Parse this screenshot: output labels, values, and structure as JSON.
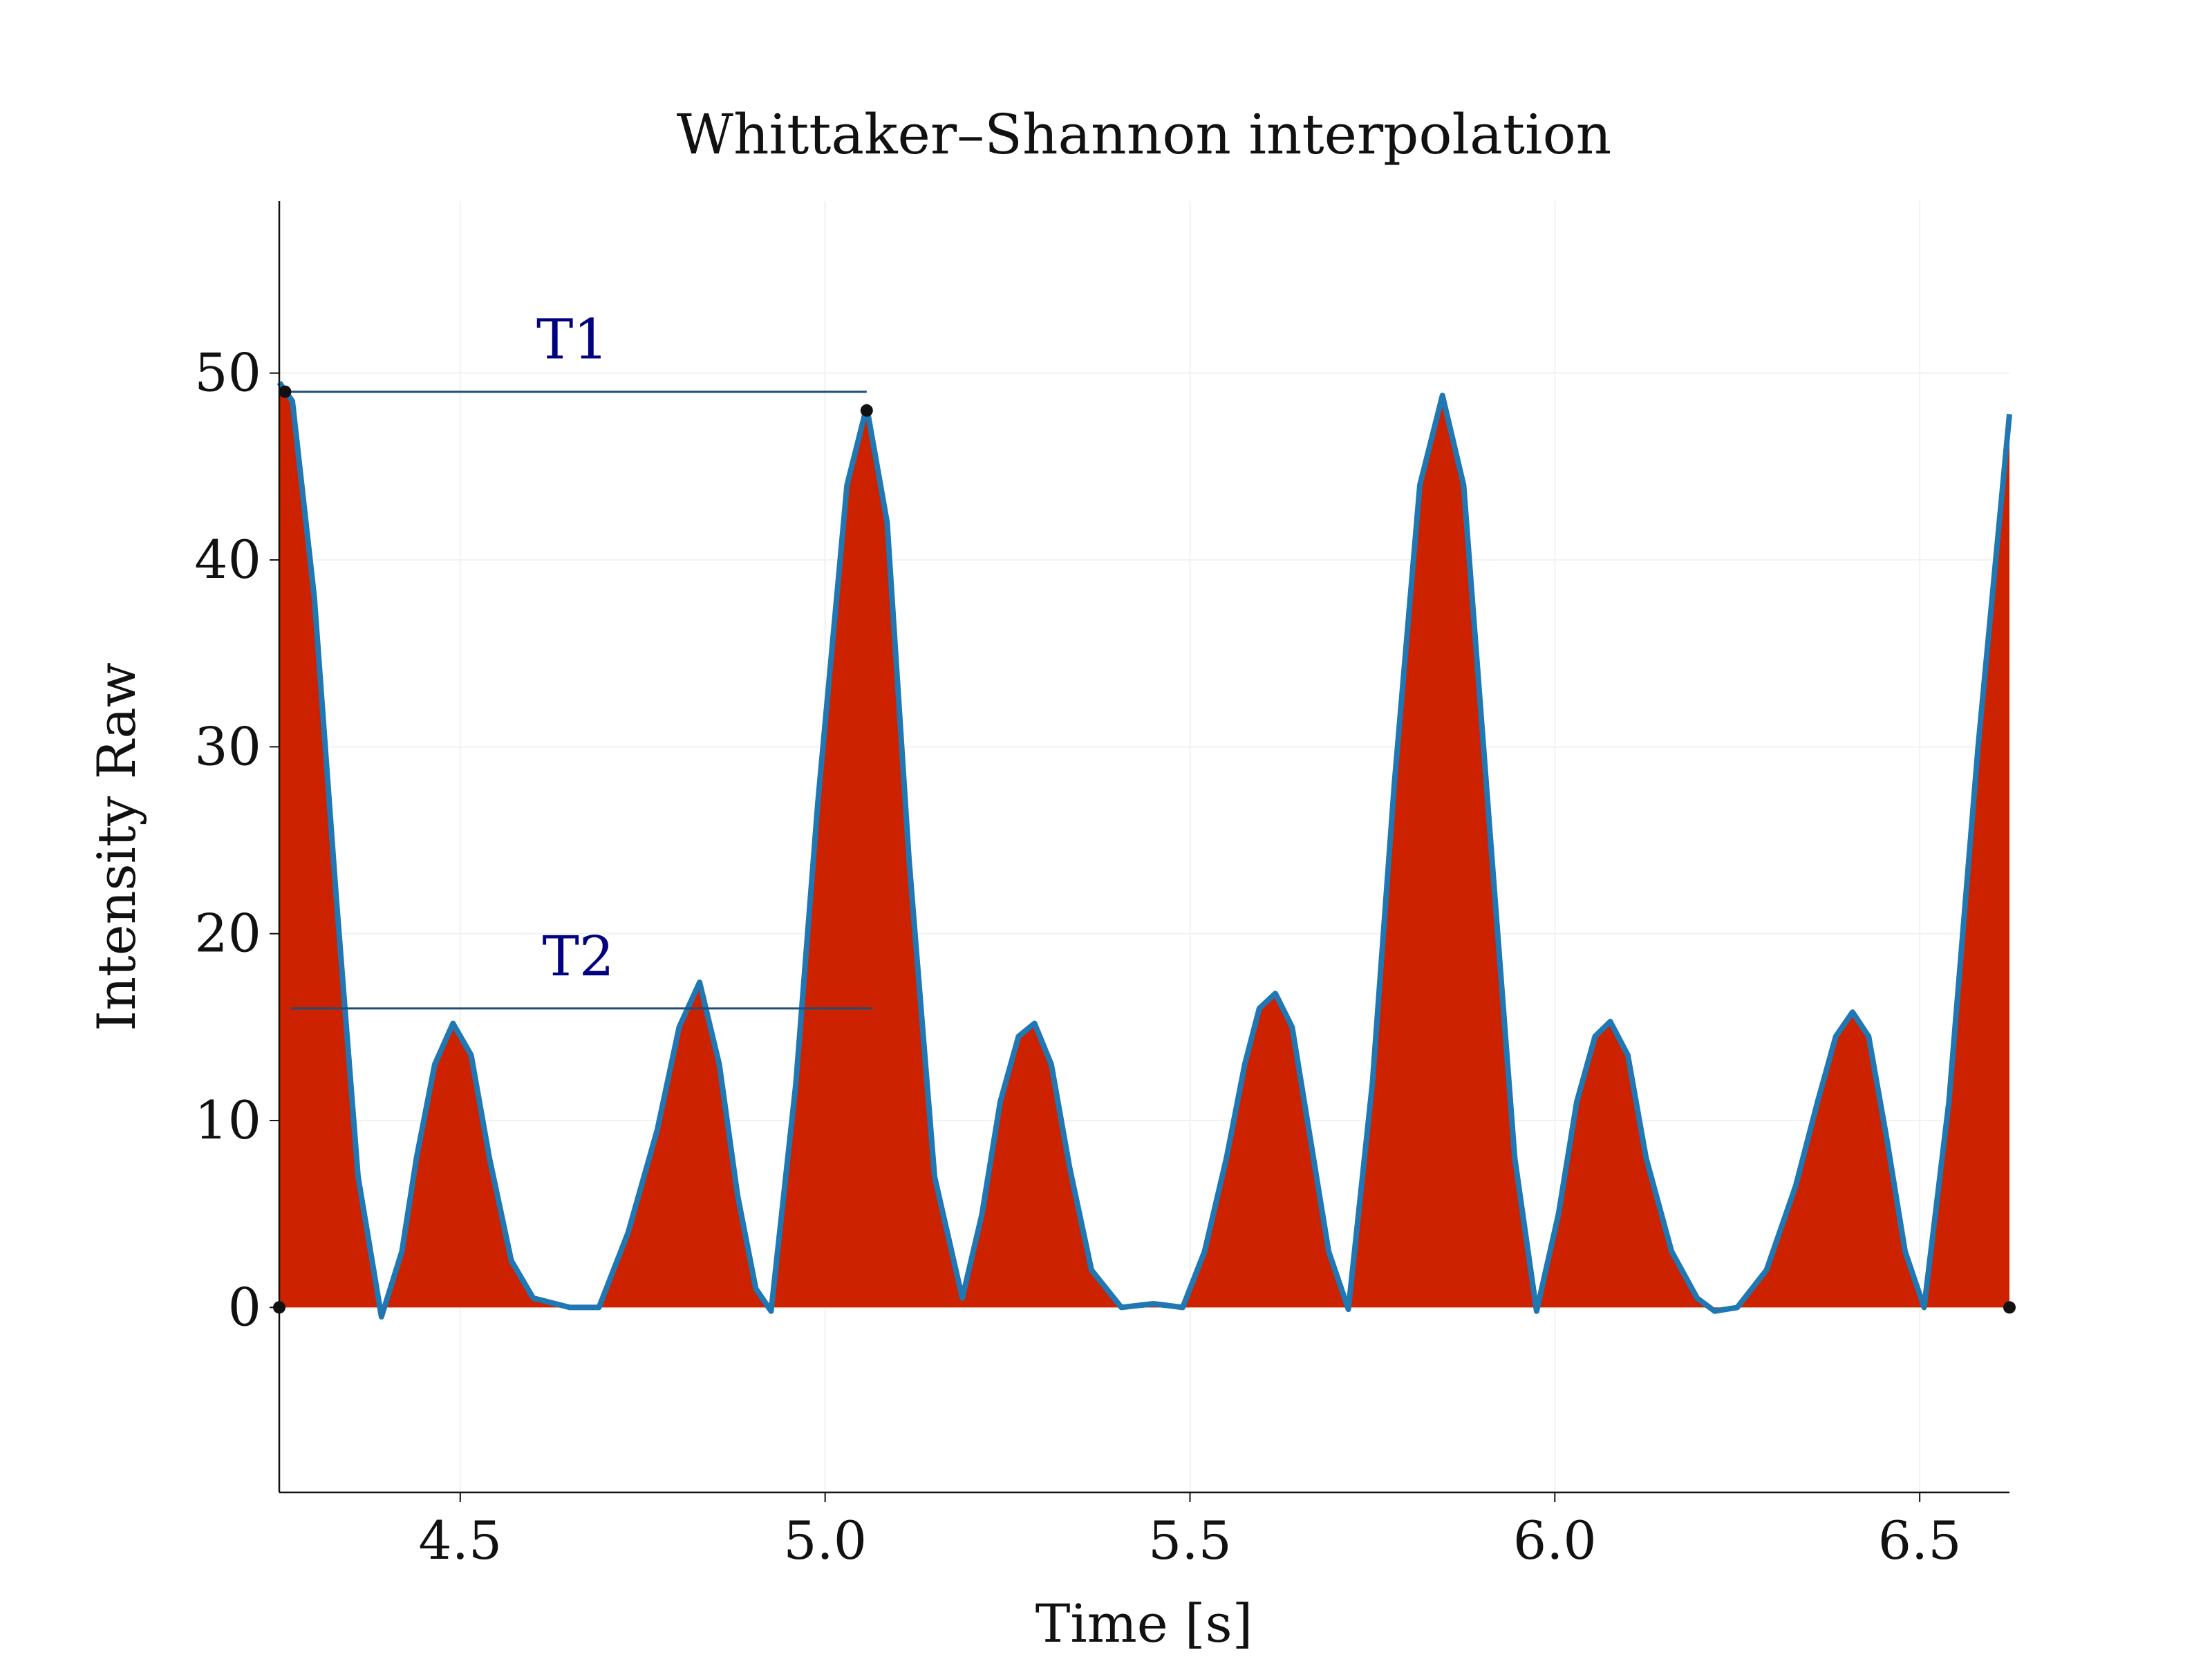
{
  "chart_data": {
    "type": "area-line",
    "title": "Whittaker–Shannon interpolation",
    "xlabel": "Time [s]",
    "ylabel": "Intensity Raw",
    "x": [
      4.252,
      4.27,
      4.3,
      4.33,
      4.36,
      4.392,
      4.42,
      4.44,
      4.465,
      4.49,
      4.515,
      4.54,
      4.57,
      4.6,
      4.65,
      4.69,
      4.73,
      4.77,
      4.8,
      4.828,
      4.855,
      4.88,
      4.905,
      4.926,
      4.96,
      4.99,
      5.03,
      5.057,
      5.085,
      5.115,
      5.15,
      5.188,
      5.215,
      5.24,
      5.265,
      5.287,
      5.31,
      5.335,
      5.365,
      5.406,
      5.45,
      5.49,
      5.52,
      5.55,
      5.575,
      5.595,
      5.617,
      5.64,
      5.665,
      5.69,
      5.717,
      5.75,
      5.78,
      5.815,
      5.846,
      5.875,
      5.91,
      5.945,
      5.975,
      6.005,
      6.03,
      6.055,
      6.076,
      6.1,
      6.125,
      6.16,
      6.195,
      6.219,
      6.25,
      6.29,
      6.33,
      6.36,
      6.385,
      6.408,
      6.43,
      6.455,
      6.48,
      6.506,
      6.54,
      6.58,
      6.623
    ],
    "series": [
      {
        "color": "#1f77b4",
        "fill": "#cc2200",
        "values": [
          49.5,
          48.5,
          38,
          22,
          7,
          -0.5,
          3,
          8,
          13,
          15.2,
          13.5,
          8,
          2.5,
          0.5,
          0,
          0,
          4,
          9.5,
          15,
          17.4,
          13,
          6,
          1,
          -0.2,
          12,
          27,
          44,
          48.2,
          42,
          24,
          7,
          0.5,
          5,
          11,
          14.5,
          15.2,
          13,
          7.5,
          2,
          0,
          0.2,
          0,
          3,
          8,
          13,
          16,
          16.8,
          15,
          9,
          3,
          -0.1,
          12,
          28,
          44,
          48.8,
          44,
          26,
          8,
          -0.2,
          5,
          11,
          14.5,
          15.3,
          13.5,
          8,
          3,
          0.5,
          -0.2,
          0,
          2,
          6.5,
          11,
          14.5,
          15.8,
          14.5,
          9,
          3,
          0,
          11,
          30,
          47.8
        ]
      }
    ],
    "markers": {
      "x": [
        4.252,
        4.26,
        5.057,
        6.623
      ],
      "y": [
        0,
        49,
        48,
        0
      ],
      "color": "#111111"
    },
    "annotations": [
      {
        "text": "T1",
        "x": [
          4.26,
          5.057
        ],
        "y": 49,
        "color": "#000080",
        "line_color": "#1f4e79"
      },
      {
        "text": "T2",
        "x": [
          4.268,
          5.065
        ],
        "y": 16,
        "color": "#000080",
        "line_color": "#1f4e79"
      }
    ],
    "xlim": [
      4.252,
      6.623
    ],
    "ylim": [
      -9.9,
      59.2
    ],
    "xticks": [
      4.5,
      {
        "value": 5,
        "label": "5.0"
      },
      5.5,
      {
        "value": 6,
        "label": "6.0"
      },
      6.5
    ],
    "yticks": [
      0,
      10,
      20,
      30,
      40,
      50
    ],
    "grid": true
  }
}
